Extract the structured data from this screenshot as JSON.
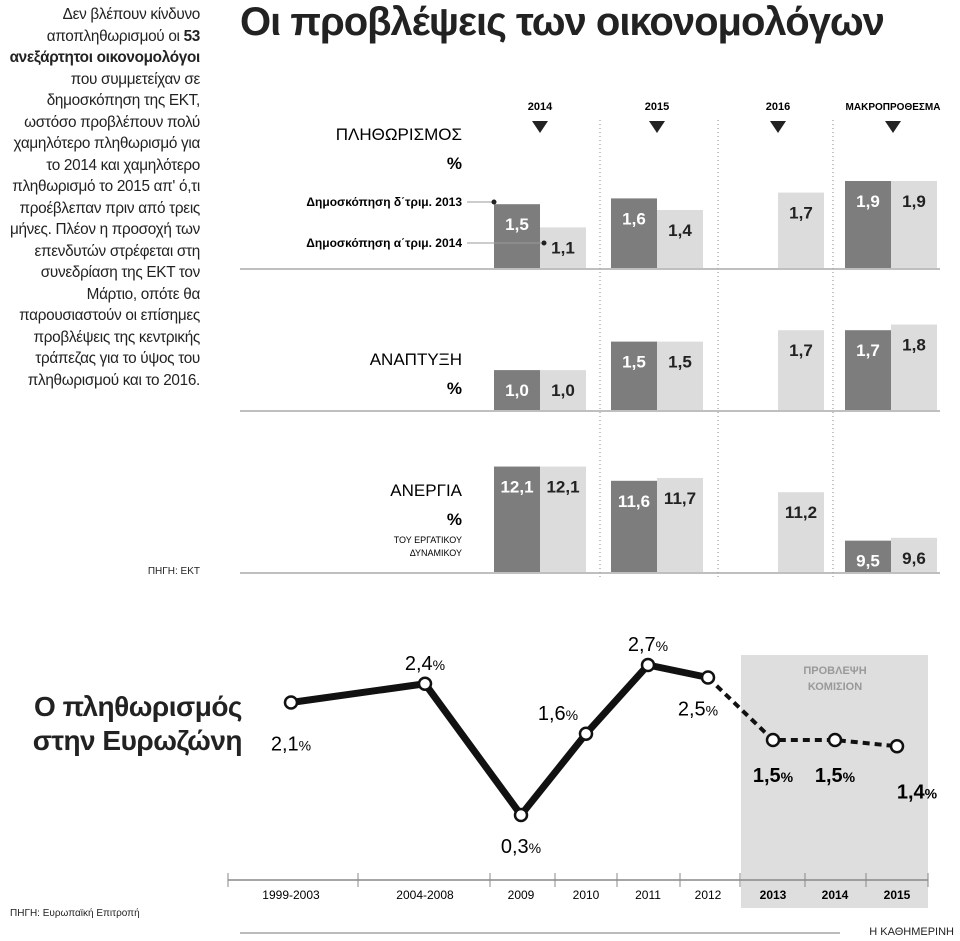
{
  "title": "Οι προβλέψεις των οικονομολόγων",
  "intro": {
    "before": "Δεν βλέπουν κίνδυνο αποπληθωρισμού οι ",
    "bold": "53 ανεξάρτητοι οικονομολόγοι",
    "after": " που συμμετείχαν σε δημοσκόπηση της ΕΚΤ, ωστόσο προβλέπουν πολύ χαμηλότερο πληθωρισμό για το 2014 και χαμηλότερο πληθωρισμό το 2015 απ' ό,τι προέβλεπαν πριν από τρεις μήνες. Πλέον η προσοχή των επενδυτών στρέφεται στη συνεδρίαση της ΕΚΤ τον Μάρτιο, οπότε θα παρουσιαστούν οι επίσημες προβλέψεις της κεντρικής τράπεζας για το ύψος του πληθωρισμού και το 2016."
  },
  "source_top": "ΠΗΓΗ: ΕΚΤ",
  "source_bottom": "ΠΗΓΗ: Ευρωπαϊκή Επιτροπή",
  "brand": "Η ΚΑΘΗΜΕΡΙΝΗ",
  "chart_data": [
    {
      "type": "bar",
      "categories": [
        "2014",
        "2015",
        "2016",
        "ΜΑΚΡΟΠΡΟΘΕΣΜΑ"
      ],
      "legend": [
        "Δημοσκόπηση δ΄τριμ. 2013",
        "Δημοσκόπηση α΄τριμ. 2014"
      ],
      "colors": {
        "survey_q4_2013": "#7d7d7d",
        "survey_q1_2014": "#dcdcdc"
      },
      "panels": [
        {
          "label": "ΠΛΗΘΩΡΙΣΜΟΣ",
          "unit": "%",
          "sublabel": "",
          "series": [
            {
              "name": "Δημοσκόπηση δ΄τριμ. 2013",
              "values": [
                "1,5",
                "1,6",
                null,
                "1,9"
              ]
            },
            {
              "name": "Δημοσκόπηση α΄τριμ. 2014",
              "values": [
                "1,1",
                "1,4",
                "1,7",
                "1,9"
              ]
            }
          ]
        },
        {
          "label": "ΑΝΑΠΤΥΞΗ",
          "unit": "%",
          "sublabel": "",
          "series": [
            {
              "name": "Δημοσκόπηση δ΄τριμ. 2013",
              "values": [
                "1,0",
                "1,5",
                null,
                "1,7"
              ]
            },
            {
              "name": "Δημοσκόπηση α΄τριμ. 2014",
              "values": [
                "1,0",
                "1,5",
                "1,7",
                "1,8"
              ]
            }
          ]
        },
        {
          "label": "ΑΝΕΡΓΙΑ",
          "unit": "%",
          "sublabel": "ΤΟΥ ΕΡΓΑΤΙΚΟΥ ΔΥΝΑΜΙΚΟΥ",
          "series": [
            {
              "name": "Δημοσκόπηση δ΄τριμ. 2013",
              "values": [
                "12,1",
                "11,6",
                null,
                "9,5"
              ]
            },
            {
              "name": "Δημοσκόπηση α΄τριμ. 2014",
              "values": [
                "12,1",
                "11,7",
                "11,2",
                "9,6"
              ]
            }
          ]
        }
      ]
    },
    {
      "type": "line",
      "title": "Ο πληθωρισμός στην Ευρωζώνη",
      "categories": [
        "1999-2003",
        "2004-2008",
        "2009",
        "2010",
        "2011",
        "2012",
        "2013",
        "2014",
        "2015"
      ],
      "values": [
        2.1,
        2.4,
        0.3,
        1.6,
        2.7,
        2.5,
        1.5,
        1.5,
        1.4
      ],
      "labels": [
        "2,1",
        "2,4",
        "0,3",
        "1,6",
        "2,7",
        "2,5",
        "1,5",
        "1,5",
        "1,4"
      ],
      "value_suffix": "%",
      "forecast_from": "2013",
      "forecast_label": [
        "ΠΡΟΒΛΕΨΗ",
        "ΚΟΜΙΣΙΟΝ"
      ],
      "forecast_shade": "#dedede"
    }
  ]
}
